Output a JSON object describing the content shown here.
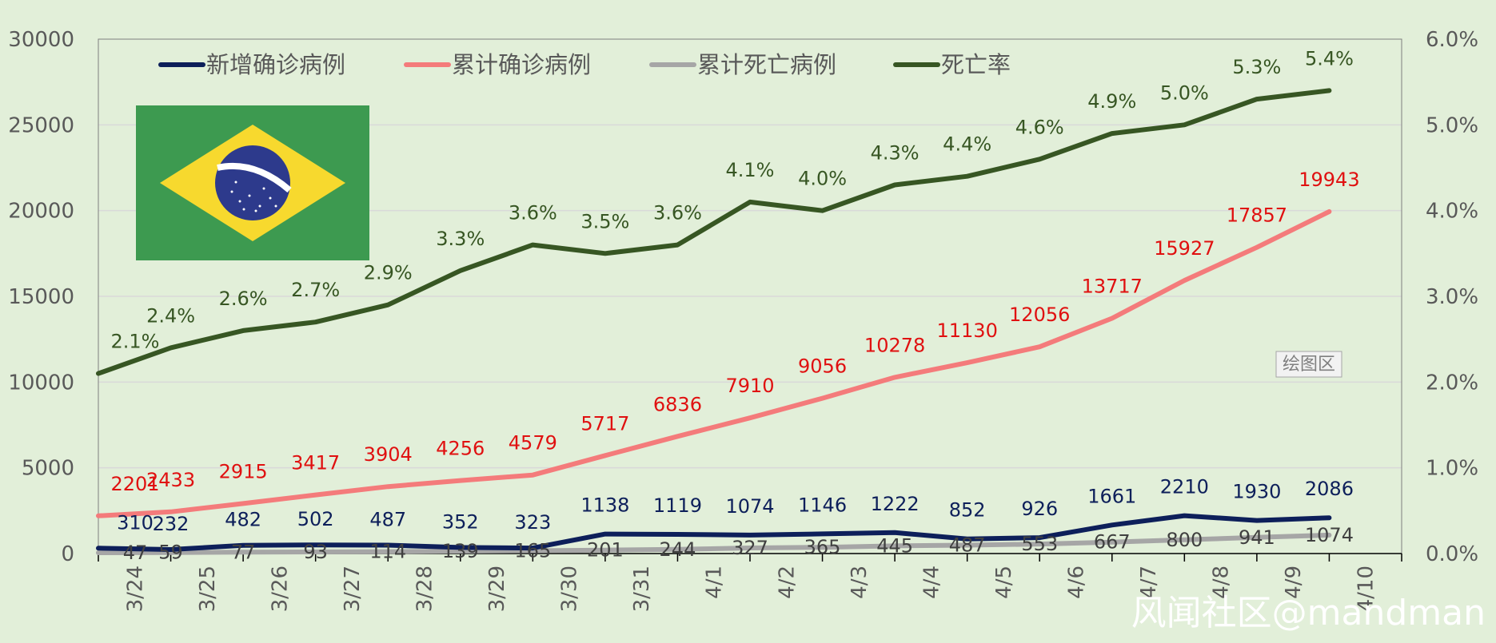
{
  "chart_data": {
    "type": "line",
    "categories": [
      "3/24",
      "3/25",
      "3/26",
      "3/27",
      "3/28",
      "3/29",
      "3/30",
      "3/31",
      "4/1",
      "4/2",
      "4/3",
      "4/4",
      "4/5",
      "4/6",
      "4/7",
      "4/8",
      "4/9",
      "4/10"
    ],
    "series": [
      {
        "name": "新增确诊病例",
        "axis": "left",
        "color": "#0d1f5a",
        "values": [
          310,
          232,
          482,
          502,
          487,
          352,
          323,
          1138,
          1119,
          1074,
          1146,
          1222,
          852,
          926,
          1661,
          2210,
          1930,
          2086
        ]
      },
      {
        "name": "累计确诊病例",
        "axis": "left",
        "color": "#f47b7b",
        "values": [
          2201,
          2433,
          2915,
          3417,
          3904,
          4256,
          4579,
          5717,
          6836,
          7910,
          9056,
          10278,
          11130,
          12056,
          13717,
          15927,
          17857,
          19943
        ]
      },
      {
        "name": "累计死亡病例",
        "axis": "left",
        "color": "#a6a6a6",
        "values": [
          47,
          59,
          77,
          93,
          114,
          139,
          165,
          201,
          244,
          327,
          365,
          445,
          487,
          553,
          667,
          800,
          941,
          1074
        ]
      },
      {
        "name": "死亡率",
        "axis": "right",
        "color": "#375623",
        "values": [
          2.1,
          2.4,
          2.6,
          2.7,
          2.9,
          3.3,
          3.6,
          3.5,
          3.6,
          4.1,
          4.0,
          4.3,
          4.4,
          4.6,
          4.9,
          5.0,
          5.3,
          5.4
        ],
        "labels": [
          "2.1%",
          "2.4%",
          "2.6%",
          "2.7%",
          "2.9%",
          "3.3%",
          "3.6%",
          "3.5%",
          "3.6%",
          "4.1%",
          "4.0%",
          "4.3%",
          "4.4%",
          "4.6%",
          "4.9%",
          "5.0%",
          "5.3%",
          "5.4%"
        ]
      }
    ],
    "ylim": [
      0,
      30000
    ],
    "y_ticks": [
      "0",
      "5000",
      "10000",
      "15000",
      "20000",
      "25000",
      "30000"
    ],
    "y2lim": [
      0,
      6
    ],
    "y2_ticks": [
      "0.0%",
      "1.0%",
      "2.0%",
      "3.0%",
      "4.0%",
      "5.0%",
      "6.0%"
    ],
    "grid": true,
    "legend_position": "top"
  },
  "plot_area_tag": "绘图区",
  "watermark": "风闻社区@mandman",
  "colors": {
    "background": "#e2efd9",
    "flag_green": "#3d9a50",
    "flag_yellow": "#f7d92e",
    "flag_blue": "#2d3a8c",
    "red_label": "#e01010"
  },
  "icons": {
    "flag": "brazil-flag-icon"
  }
}
